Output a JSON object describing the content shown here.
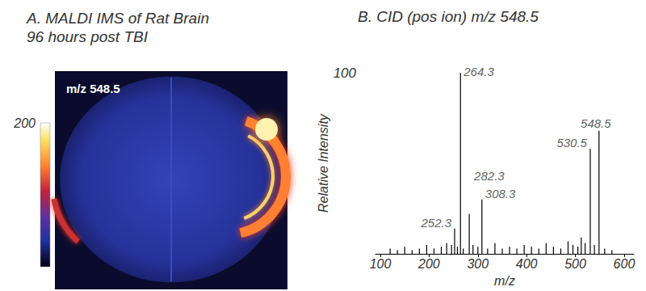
{
  "chart_data": [
    {
      "type": "image",
      "title": [
        "A. MALDI IMS of Rat Brain",
        "96 hours post TBI"
      ],
      "label": "m/z 548.5",
      "colorbar": {
        "range": [
          0,
          200
        ],
        "ticks": [
          200
        ]
      }
    },
    {
      "type": "bar",
      "title": "B. CID (pos ion) m/z 548.5",
      "x_label": "m/z",
      "y_label": "Relative Intensity",
      "x": [
        120,
        135,
        150,
        165,
        180,
        195,
        210,
        225,
        236,
        246,
        252.3,
        258,
        264.3,
        270,
        282.3,
        290,
        300,
        308.3,
        320,
        335,
        350,
        365,
        380,
        395,
        410,
        425,
        440,
        455,
        470,
        485,
        495,
        505,
        512,
        520,
        530.5,
        539,
        548.5,
        560,
        575
      ],
      "values": [
        3,
        2,
        4,
        2,
        3,
        5,
        3,
        4,
        6,
        5,
        14,
        4,
        100,
        3,
        22,
        5,
        4,
        30,
        3,
        6,
        3,
        4,
        3,
        5,
        4,
        3,
        6,
        4,
        3,
        7,
        5,
        4,
        9,
        6,
        58,
        5,
        68,
        3,
        2
      ],
      "color": "#000000",
      "xlim": [
        90,
        620
      ],
      "xticks": [
        100,
        200,
        300,
        400,
        500,
        600
      ],
      "ylim": [
        0,
        100
      ],
      "yticks": [
        100
      ],
      "annotations": [
        {
          "text": "264.3",
          "x": 264.3,
          "y": 100
        },
        {
          "text": "548.5",
          "x": 548.5,
          "y": 68
        },
        {
          "text": "530.5",
          "x": 530.5,
          "y": 58
        },
        {
          "text": "308.3",
          "x": 308.3,
          "y": 30
        },
        {
          "text": "282.3",
          "x": 282.3,
          "y": 22
        },
        {
          "text": "252.3",
          "x": 252.3,
          "y": 14
        }
      ]
    }
  ]
}
